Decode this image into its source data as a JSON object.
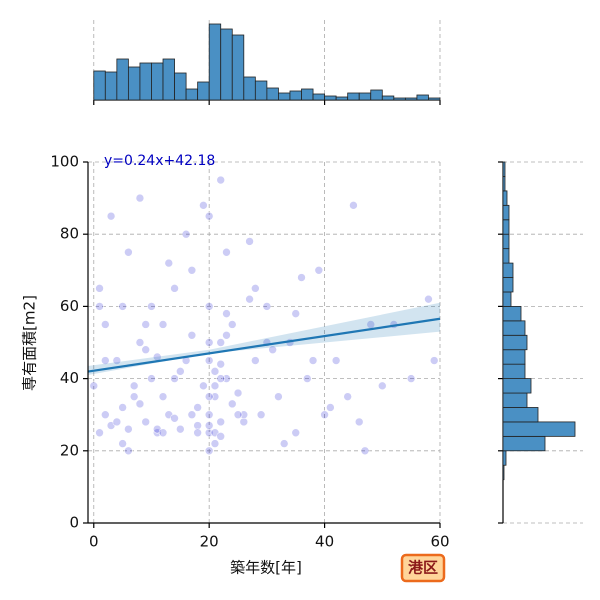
{
  "chart_data": [
    {
      "type": "scatter",
      "xlabel": "築年数[年]",
      "ylabel": "専有面積[m2]",
      "annotation": "y=0.24x+42.18",
      "badge": "港区",
      "color": "#0000cd",
      "line_color": "#1f77b4",
      "grid": true,
      "xlim": [
        -1,
        60
      ],
      "xticks": [
        0,
        20,
        40,
        60
      ],
      "ylim": [
        0,
        100
      ],
      "yticks": [
        0,
        20,
        40,
        60,
        80,
        100
      ],
      "regression": {
        "slope": 0.24,
        "intercept": 42.18
      },
      "ci": {
        "x": [
          -1,
          20,
          60
        ],
        "lower": [
          41,
          47,
          53
        ],
        "upper": [
          43.5,
          48,
          61
        ]
      },
      "x": [
        1,
        2,
        3,
        4,
        5,
        6,
        7,
        8,
        9,
        10,
        11,
        12,
        13,
        14,
        15,
        16,
        17,
        18,
        19,
        20,
        20,
        20,
        20,
        21,
        21,
        22,
        22,
        23,
        23,
        24,
        1,
        3,
        5,
        7,
        9,
        11,
        13,
        15,
        17,
        19,
        20,
        21,
        22,
        23,
        25,
        26,
        27,
        28,
        29,
        30,
        2,
        4,
        6,
        8,
        10,
        12,
        14,
        16,
        18,
        20,
        21,
        22,
        24,
        26,
        28,
        31,
        33,
        35,
        37,
        39,
        0,
        2,
        5,
        8,
        11,
        14,
        17,
        20,
        20,
        21,
        22,
        23,
        32,
        34,
        36,
        40,
        42,
        45,
        48,
        50,
        1,
        6,
        12,
        18,
        20,
        22,
        25,
        30,
        35,
        38,
        44,
        47,
        52,
        55,
        58,
        59,
        46,
        41,
        27,
        9
      ],
      "values": [
        25,
        30,
        27,
        45,
        60,
        26,
        35,
        50,
        28,
        40,
        25,
        55,
        30,
        65,
        26,
        45,
        70,
        32,
        38,
        25,
        30,
        45,
        60,
        22,
        35,
        28,
        50,
        75,
        40,
        33,
        60,
        85,
        22,
        38,
        55,
        26,
        72,
        42,
        30,
        88,
        20,
        25,
        95,
        52,
        36,
        28,
        62,
        45,
        30,
        50,
        45,
        28,
        75,
        33,
        60,
        25,
        40,
        80,
        27,
        35,
        42,
        24,
        55,
        30,
        65,
        48,
        22,
        58,
        40,
        70,
        38,
        55,
        32,
        90,
        46,
        29,
        52,
        27,
        85,
        38,
        44,
        58,
        35,
        50,
        68,
        30,
        45,
        88,
        55,
        38,
        65,
        20,
        35,
        25,
        50,
        40,
        30,
        60,
        25,
        45,
        35,
        20,
        55,
        40,
        62,
        45,
        28,
        32,
        78,
        48
      ]
    },
    {
      "type": "histogram",
      "color": "#4a90c4",
      "bins": [
        0,
        2,
        4,
        6,
        8,
        10,
        12,
        14,
        16,
        18,
        20,
        22,
        24,
        26,
        28,
        30,
        32,
        34,
        36,
        38,
        40,
        42,
        44,
        46,
        48,
        50,
        52,
        54,
        56,
        58,
        60
      ],
      "values": [
        29,
        28,
        41,
        33,
        37,
        37,
        41,
        27,
        11,
        18,
        76,
        71,
        65,
        23,
        19,
        12,
        7,
        9,
        11,
        6,
        4,
        3,
        7,
        7,
        10,
        4,
        2,
        2,
        5,
        2
      ],
      "ylim": [
        0,
        80
      ]
    },
    {
      "type": "histogram-horizontal",
      "color": "#4a90c4",
      "bins": [
        12,
        16,
        20,
        24,
        28,
        32,
        36,
        40,
        44,
        48,
        52,
        56,
        60,
        64,
        68,
        72,
        76,
        80,
        84,
        88,
        92,
        96,
        100
      ],
      "values": [
        1,
        3,
        42,
        72,
        35,
        24,
        28,
        22,
        22,
        24,
        22,
        18,
        8,
        10,
        10,
        6,
        6,
        6,
        6,
        4,
        2,
        2
      ],
      "xlim": [
        0,
        80
      ]
    }
  ]
}
